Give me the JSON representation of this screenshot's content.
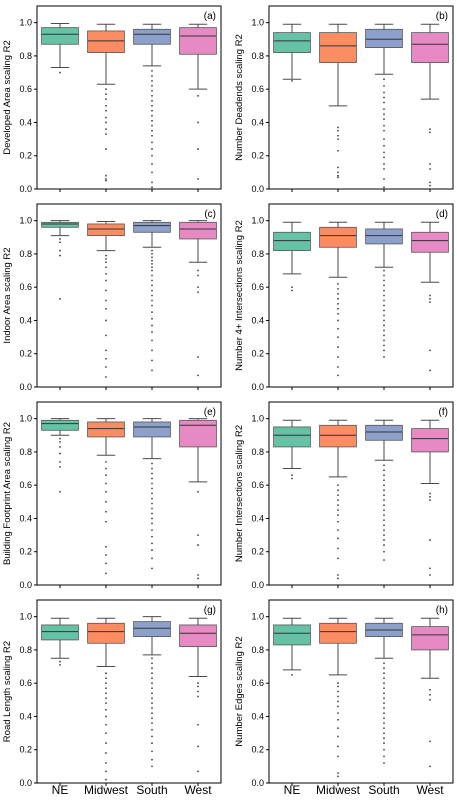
{
  "chart_data": {
    "type": "box",
    "categories": [
      "NE",
      "Midwest",
      "South",
      "West"
    ],
    "colors": [
      "#66c2a5",
      "#fc8d62",
      "#8da0cb",
      "#e78ac3"
    ],
    "ylim": [
      0,
      1.1
    ],
    "yticks": [
      "0.0",
      "0.2",
      "0.4",
      "0.6",
      "0.8",
      "1.0"
    ],
    "panels": [
      {
        "tag": "(a)",
        "ylabel": "Developed Area scaling R2",
        "boxes": [
          {
            "whislo": 0.73,
            "q1": 0.87,
            "med": 0.93,
            "q3": 0.97,
            "whishi": 0.995,
            "fliers": [
              0.7
            ]
          },
          {
            "whislo": 0.63,
            "q1": 0.82,
            "med": 0.89,
            "q3": 0.95,
            "whishi": 0.99,
            "fliers": [
              0.6,
              0.57,
              0.54,
              0.5,
              0.47,
              0.43,
              0.4,
              0.36,
              0.33,
              0.24,
              0.08,
              0.06,
              0.05
            ]
          },
          {
            "whislo": 0.74,
            "q1": 0.87,
            "med": 0.93,
            "q3": 0.96,
            "whishi": 0.99,
            "fliers": [
              0.71,
              0.68,
              0.65,
              0.62,
              0.59,
              0.56,
              0.53,
              0.5,
              0.47,
              0.44,
              0.41,
              0.38,
              0.35,
              0.32,
              0.28,
              0.24,
              0.2,
              0.15,
              0.1,
              0.04,
              0.01
            ]
          },
          {
            "whislo": 0.6,
            "q1": 0.81,
            "med": 0.92,
            "q3": 0.97,
            "whishi": 0.99,
            "fliers": [
              0.56,
              0.4,
              0.24,
              0.06
            ]
          }
        ]
      },
      {
        "tag": "(b)",
        "ylabel": "Number Deadends scaling R2",
        "boxes": [
          {
            "whislo": 0.66,
            "q1": 0.82,
            "med": 0.89,
            "q3": 0.94,
            "whishi": 0.99,
            "fliers": [
              0.65
            ]
          },
          {
            "whislo": 0.5,
            "q1": 0.76,
            "med": 0.86,
            "q3": 0.94,
            "whishi": 0.99,
            "fliers": [
              0.37,
              0.35,
              0.32,
              0.3,
              0.23,
              0.13,
              0.1,
              0.08,
              0.07
            ]
          },
          {
            "whislo": 0.69,
            "q1": 0.85,
            "med": 0.9,
            "q3": 0.96,
            "whishi": 0.99,
            "fliers": [
              0.66,
              0.62,
              0.58,
              0.55,
              0.52,
              0.48,
              0.45,
              0.42,
              0.38,
              0.35,
              0.3,
              0.26,
              0.22,
              0.19,
              0.15,
              0.12,
              0.06,
              0.01
            ]
          },
          {
            "whislo": 0.54,
            "q1": 0.76,
            "med": 0.87,
            "q3": 0.94,
            "whishi": 0.99,
            "fliers": [
              0.36,
              0.34,
              0.15,
              0.12,
              0.04,
              0.02
            ]
          }
        ]
      },
      {
        "tag": "(c)",
        "ylabel": "Indoor Area scaling R2",
        "boxes": [
          {
            "whislo": 0.91,
            "q1": 0.96,
            "med": 0.98,
            "q3": 0.99,
            "whishi": 1.0,
            "fliers": [
              0.89,
              0.87,
              0.82,
              0.79,
              0.53
            ]
          },
          {
            "whislo": 0.82,
            "q1": 0.91,
            "med": 0.95,
            "q3": 0.98,
            "whishi": 0.995,
            "fliers": [
              0.79,
              0.77,
              0.75,
              0.72,
              0.68,
              0.64,
              0.58,
              0.52,
              0.47,
              0.4,
              0.31,
              0.22,
              0.17,
              0.12,
              0.06
            ]
          },
          {
            "whislo": 0.84,
            "q1": 0.93,
            "med": 0.97,
            "q3": 0.99,
            "whishi": 1.0,
            "fliers": [
              0.82,
              0.8,
              0.78,
              0.76,
              0.74,
              0.72,
              0.7,
              0.67,
              0.64,
              0.61,
              0.58,
              0.55,
              0.52,
              0.49,
              0.45,
              0.41,
              0.37,
              0.33,
              0.28,
              0.22,
              0.16,
              0.1
            ]
          },
          {
            "whislo": 0.75,
            "q1": 0.89,
            "med": 0.95,
            "q3": 0.99,
            "whishi": 1.0,
            "fliers": [
              0.7,
              0.67,
              0.6,
              0.57,
              0.18,
              0.07
            ]
          }
        ]
      },
      {
        "tag": "(d)",
        "ylabel": "Number 4+ Intersections scaling R2",
        "boxes": [
          {
            "whislo": 0.68,
            "q1": 0.82,
            "med": 0.88,
            "q3": 0.93,
            "whishi": 0.99,
            "fliers": [
              0.6,
              0.58
            ]
          },
          {
            "whislo": 0.66,
            "q1": 0.84,
            "med": 0.91,
            "q3": 0.96,
            "whishi": 0.99,
            "fliers": [
              0.62,
              0.59,
              0.56,
              0.53,
              0.5,
              0.47,
              0.44,
              0.4,
              0.35,
              0.3,
              0.24,
              0.18,
              0.12,
              0.07
            ]
          },
          {
            "whislo": 0.72,
            "q1": 0.86,
            "med": 0.91,
            "q3": 0.95,
            "whishi": 0.99,
            "fliers": [
              0.7,
              0.67,
              0.64,
              0.61,
              0.58,
              0.55,
              0.52,
              0.49,
              0.46,
              0.43,
              0.4,
              0.37,
              0.34,
              0.31,
              0.28,
              0.25,
              0.22,
              0.18
            ]
          },
          {
            "whislo": 0.63,
            "q1": 0.81,
            "med": 0.88,
            "q3": 0.93,
            "whishi": 0.99,
            "fliers": [
              0.55,
              0.53,
              0.51,
              0.22,
              0.1
            ]
          }
        ]
      },
      {
        "tag": "(e)",
        "ylabel": "Building Footprint Area scaling R2",
        "boxes": [
          {
            "whislo": 0.9,
            "q1": 0.93,
            "med": 0.97,
            "q3": 0.99,
            "whishi": 1.0,
            "fliers": [
              0.88,
              0.86,
              0.83,
              0.79,
              0.74,
              0.71,
              0.56
            ]
          },
          {
            "whislo": 0.78,
            "q1": 0.89,
            "med": 0.94,
            "q3": 0.98,
            "whishi": 1.0,
            "fliers": [
              0.74,
              0.7,
              0.66,
              0.61,
              0.56,
              0.5,
              0.44,
              0.38,
              0.23,
              0.18,
              0.13,
              0.07
            ]
          },
          {
            "whislo": 0.76,
            "q1": 0.89,
            "med": 0.95,
            "q3": 0.98,
            "whishi": 1.0,
            "fliers": [
              0.73,
              0.7,
              0.67,
              0.64,
              0.61,
              0.58,
              0.55,
              0.52,
              0.49,
              0.46,
              0.43,
              0.4,
              0.37,
              0.33,
              0.29,
              0.25,
              0.21,
              0.16,
              0.1
            ]
          },
          {
            "whislo": 0.62,
            "q1": 0.83,
            "med": 0.96,
            "q3": 0.99,
            "whishi": 1.0,
            "fliers": [
              0.56,
              0.3,
              0.24,
              0.06,
              0.04
            ]
          }
        ]
      },
      {
        "tag": "(f)",
        "ylabel": "Number Intersections scaling R2",
        "boxes": [
          {
            "whislo": 0.7,
            "q1": 0.83,
            "med": 0.9,
            "q3": 0.95,
            "whishi": 0.99,
            "fliers": [
              0.66,
              0.64
            ]
          },
          {
            "whislo": 0.65,
            "q1": 0.83,
            "med": 0.9,
            "q3": 0.96,
            "whishi": 0.99,
            "fliers": [
              0.6,
              0.57,
              0.54,
              0.51,
              0.48,
              0.45,
              0.42,
              0.38,
              0.33,
              0.28,
              0.22,
              0.16,
              0.06,
              0.04
            ]
          },
          {
            "whislo": 0.75,
            "q1": 0.87,
            "med": 0.92,
            "q3": 0.96,
            "whishi": 0.99,
            "fliers": [
              0.72,
              0.69,
              0.66,
              0.63,
              0.6,
              0.57,
              0.54,
              0.51,
              0.48,
              0.45,
              0.42,
              0.39,
              0.36,
              0.33,
              0.3,
              0.27,
              0.24,
              0.2,
              0.15
            ]
          },
          {
            "whislo": 0.61,
            "q1": 0.8,
            "med": 0.88,
            "q3": 0.94,
            "whishi": 0.99,
            "fliers": [
              0.55,
              0.53,
              0.51,
              0.27,
              0.1,
              0.06
            ]
          }
        ]
      },
      {
        "tag": "(g)",
        "ylabel": "Road Length scaling R2",
        "boxes": [
          {
            "whislo": 0.75,
            "q1": 0.86,
            "med": 0.91,
            "q3": 0.95,
            "whishi": 0.99,
            "fliers": [
              0.73,
              0.71
            ]
          },
          {
            "whislo": 0.7,
            "q1": 0.84,
            "med": 0.91,
            "q3": 0.96,
            "whishi": 0.99,
            "fliers": [
              0.66,
              0.63,
              0.6,
              0.57,
              0.54,
              0.51,
              0.48,
              0.44,
              0.4,
              0.35,
              0.3,
              0.24,
              0.18,
              0.12,
              0.07,
              0.02
            ]
          },
          {
            "whislo": 0.77,
            "q1": 0.88,
            "med": 0.93,
            "q3": 0.97,
            "whishi": 1.0,
            "fliers": [
              0.75,
              0.72,
              0.69,
              0.66,
              0.63,
              0.6,
              0.57,
              0.54,
              0.51,
              0.48,
              0.45,
              0.42,
              0.39,
              0.36,
              0.32,
              0.28,
              0.24,
              0.19,
              0.14,
              0.1
            ]
          },
          {
            "whislo": 0.64,
            "q1": 0.82,
            "med": 0.9,
            "q3": 0.95,
            "whishi": 0.99,
            "fliers": [
              0.6,
              0.58,
              0.55,
              0.52,
              0.35,
              0.22,
              0.07
            ]
          }
        ]
      },
      {
        "tag": "(h)",
        "ylabel": "Number Edges scaling R2",
        "boxes": [
          {
            "whislo": 0.68,
            "q1": 0.83,
            "med": 0.9,
            "q3": 0.95,
            "whishi": 0.99,
            "fliers": [
              0.65
            ]
          },
          {
            "whislo": 0.65,
            "q1": 0.84,
            "med": 0.91,
            "q3": 0.96,
            "whishi": 0.99,
            "fliers": [
              0.6,
              0.58,
              0.55,
              0.52,
              0.49,
              0.46,
              0.42,
              0.38,
              0.33,
              0.28,
              0.22,
              0.16,
              0.06,
              0.04
            ]
          },
          {
            "whislo": 0.75,
            "q1": 0.88,
            "med": 0.92,
            "q3": 0.96,
            "whishi": 0.99,
            "fliers": [
              0.72,
              0.69,
              0.66,
              0.63,
              0.6,
              0.57,
              0.54,
              0.51,
              0.48,
              0.45,
              0.42,
              0.39,
              0.36,
              0.33,
              0.3,
              0.27,
              0.24,
              0.2,
              0.16,
              0.12
            ]
          },
          {
            "whislo": 0.63,
            "q1": 0.8,
            "med": 0.89,
            "q3": 0.94,
            "whishi": 0.99,
            "fliers": [
              0.56,
              0.53,
              0.5,
              0.25,
              0.1
            ]
          }
        ]
      }
    ]
  }
}
